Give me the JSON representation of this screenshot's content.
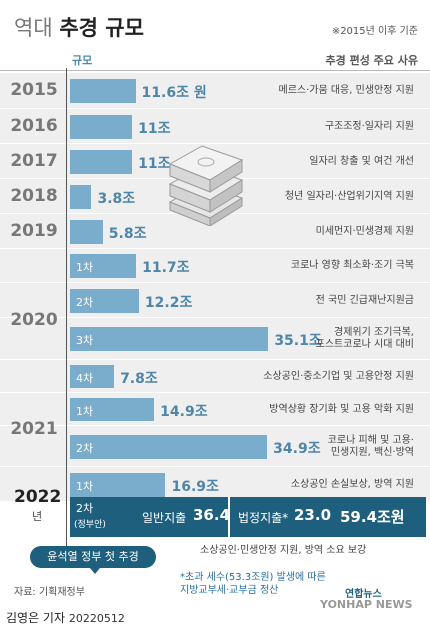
{
  "title": {
    "light": "역대",
    "bold": "추경 규모"
  },
  "note": "※2015년 이후 기준",
  "headers": {
    "scale": "규모",
    "reasons": "추경 편성 주요 사유"
  },
  "chart_data": {
    "type": "bar",
    "orientation": "horizontal",
    "unit": "조원",
    "rows": [
      {
        "year": "2015",
        "round": "",
        "value": 11.6,
        "label": "11.6조 원",
        "reason": [
          "메르스·가뭄 대응, 민생안정 지원"
        ]
      },
      {
        "year": "2016",
        "round": "",
        "value": 11,
        "label": "11조",
        "reason": [
          "구조조정·일자리 지원"
        ]
      },
      {
        "year": "2017",
        "round": "",
        "value": 11,
        "label": "11조",
        "reason": [
          "일자리 창출 및 여건 개선"
        ]
      },
      {
        "year": "2018",
        "round": "",
        "value": 3.8,
        "label": "3.8조",
        "reason": [
          "청년 일자리·산업위기지역 지원"
        ]
      },
      {
        "year": "2019",
        "round": "",
        "value": 5.8,
        "label": "5.8조",
        "reason": [
          "미세먼지·민생경제 지원"
        ]
      },
      {
        "year": "2020",
        "round": "1차",
        "value": 11.7,
        "label": "11.7조",
        "reason": [
          "코로나 영향 최소화·조기 극복"
        ]
      },
      {
        "year": "2020",
        "round": "2차",
        "value": 12.2,
        "label": "12.2조",
        "reason": [
          "전 국민 긴급재난지원금"
        ]
      },
      {
        "year": "2020",
        "round": "3차",
        "value": 35.1,
        "label": "35.1조",
        "reason": [
          "경제위기 조기극복,",
          "포스트코로나 시대 대비"
        ]
      },
      {
        "year": "2020",
        "round": "4차",
        "value": 7.8,
        "label": "7.8조",
        "reason": [
          "소상공인·중소기업 및 고용안정 지원"
        ]
      },
      {
        "year": "2021",
        "round": "1차",
        "value": 14.9,
        "label": "14.9조",
        "reason": [
          "방역상황 장기화 및 고용 악화 지원"
        ]
      },
      {
        "year": "2021",
        "round": "2차",
        "value": 34.9,
        "label": "34.9조",
        "reason": [
          "코로나 피해 및 고용·",
          "민생지원, 백신·방역"
        ]
      },
      {
        "year": "2022",
        "round": "1차",
        "value": 16.9,
        "label": "16.9조",
        "reason": [
          "소상공인 손실보상, 방역 지원"
        ]
      }
    ],
    "government_proposal": {
      "year": "2022",
      "year_suffix": "년",
      "round": "2차",
      "round_note": "(정부안)",
      "general_label": "일반지출",
      "general_value": 36.4,
      "statutory_label": "법정지출*",
      "statutory_value": 23.0,
      "total_label": "59.4조원",
      "total": 59.4,
      "reason": "소상공인·민생안정 지원, 방역 소요 보강"
    }
  },
  "badge": "윤석열 정부 첫 추경",
  "source": "자료: 기획재정부",
  "footnote": [
    "*초과 세수(53.3조원) 발생에 따른",
    "지방교부세·교부금 정산"
  ],
  "agency": {
    "ko": "연합뉴스",
    "en": "YONHAP NEWS"
  },
  "reporter": {
    "name": "김영은 기자",
    "date": "20220512"
  },
  "colors": {
    "bar": "#7aaccb",
    "highlight": "#1f5f7e",
    "label": "#4f86a8",
    "row_bg": "#efefef"
  }
}
